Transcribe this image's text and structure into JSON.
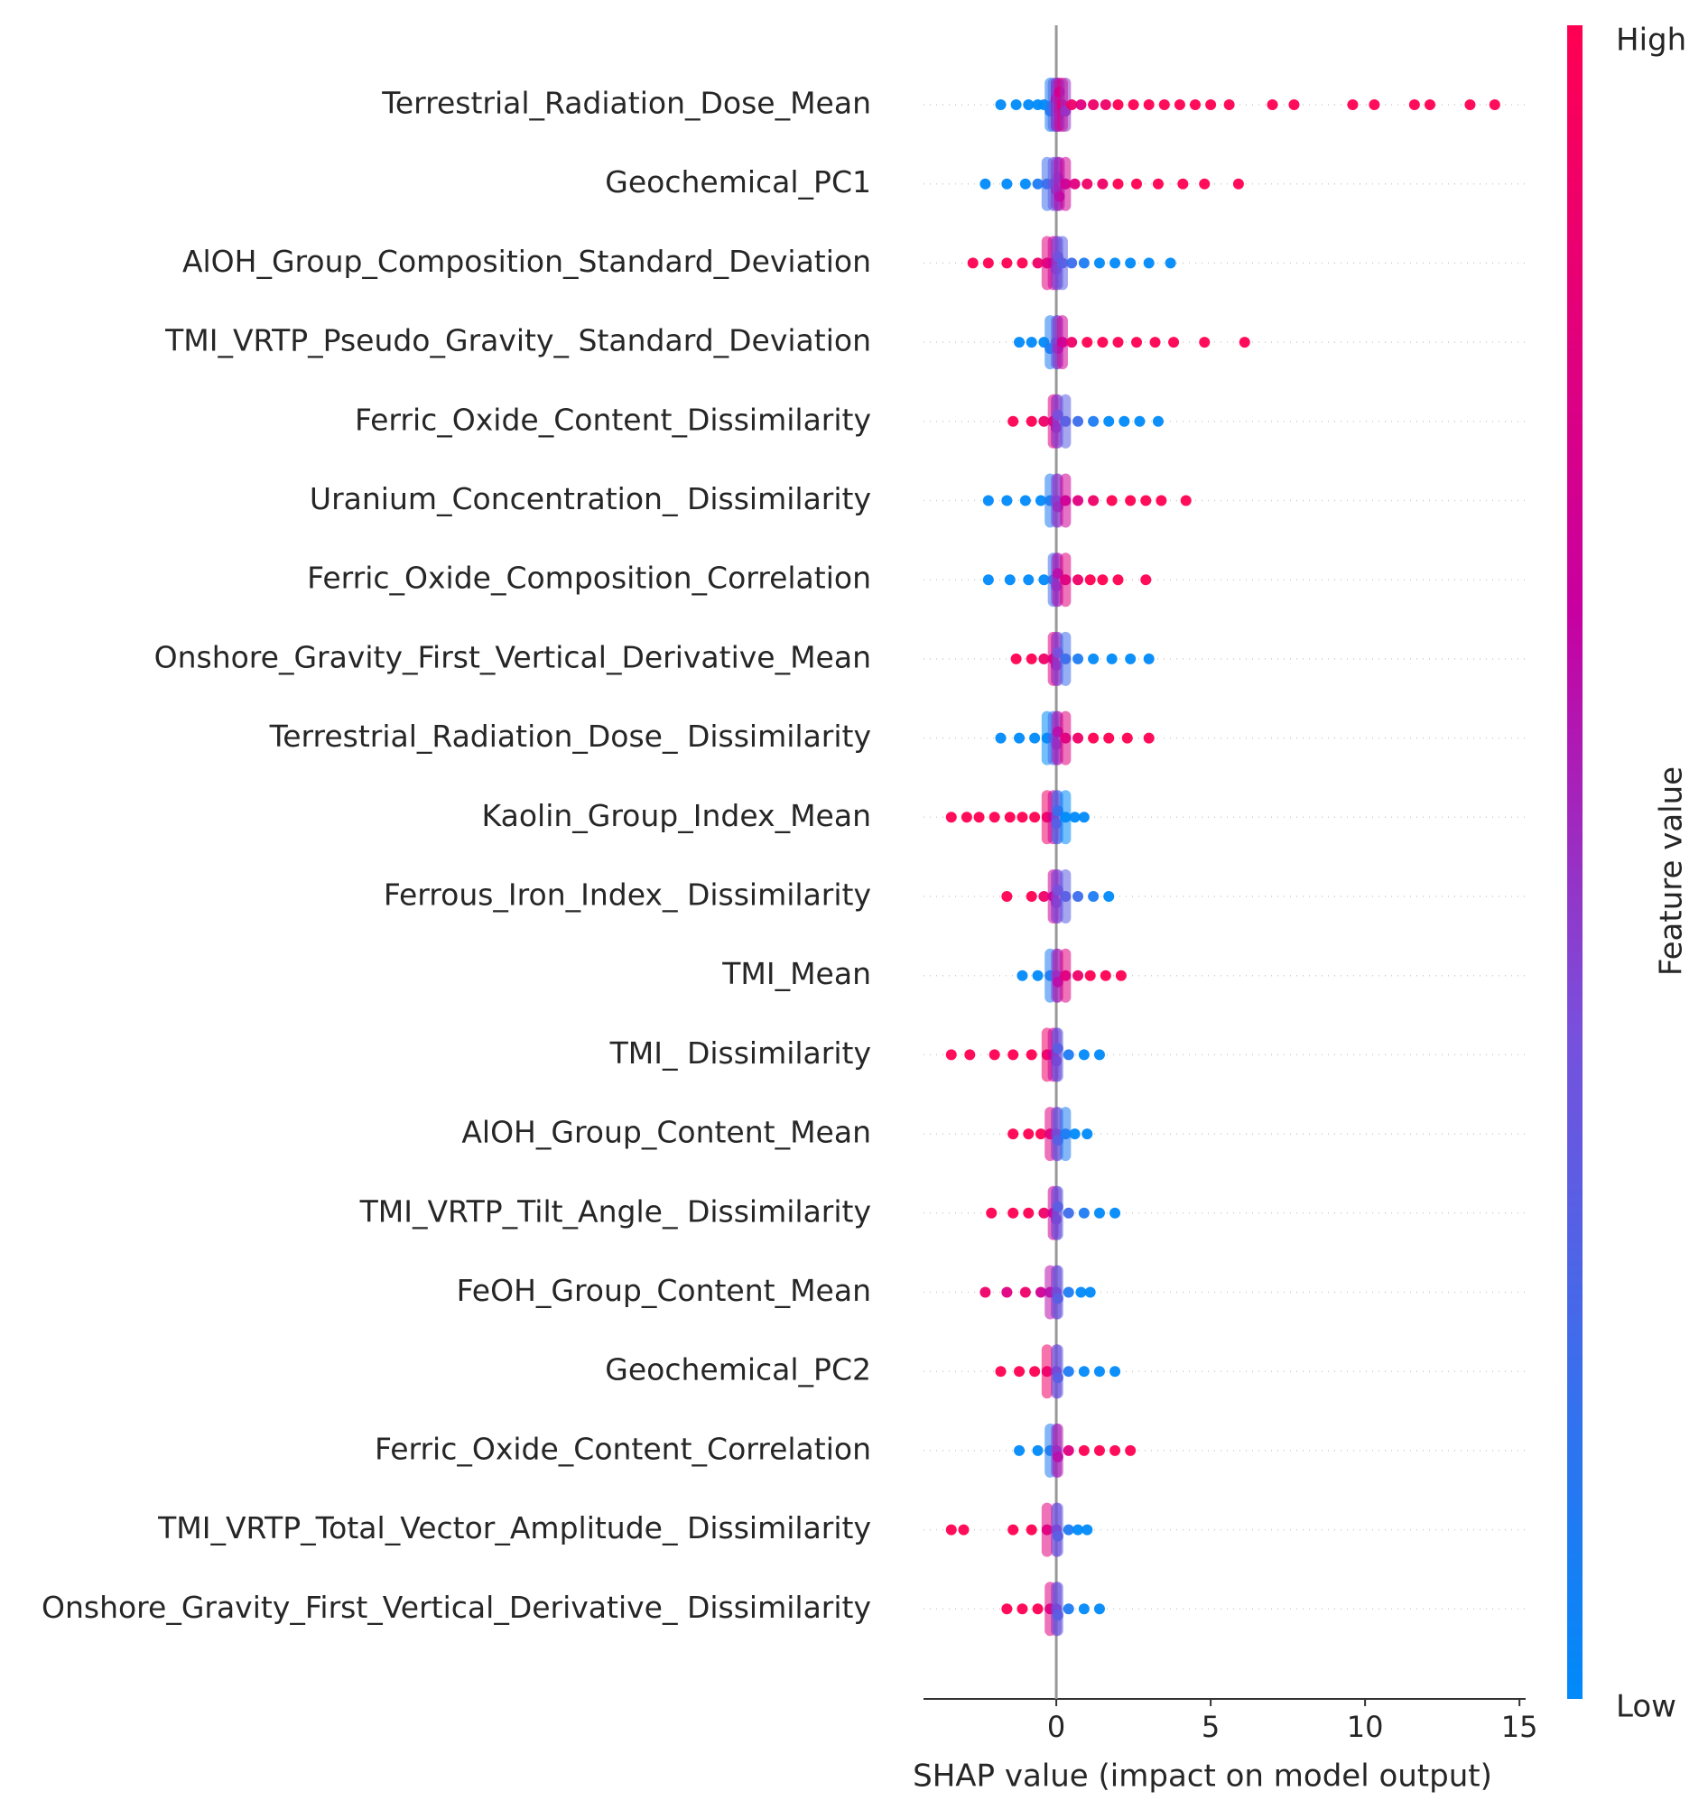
{
  "chart_data": {
    "type": "beeswarm",
    "xlabel": "SHAP value (impact on model output)",
    "xlim": [
      -4.3,
      15.2
    ],
    "xticks": [
      0,
      5,
      10,
      15
    ],
    "colorbar_label": "Feature value",
    "colorbar_high": "High",
    "colorbar_low": "Low",
    "features": [
      {
        "name": "Terrestrial_Radiation_Dose_Mean",
        "shap": [
          -1.8,
          -1.3,
          -0.9,
          -0.6,
          -0.4,
          -0.2,
          -0.1,
          0,
          0,
          0.05,
          0.1,
          0.2,
          0.3,
          0.5,
          0.8,
          1.2,
          1.6,
          2.0,
          2.5,
          3.0,
          3.5,
          4.0,
          4.5,
          5.0,
          5.6,
          7.0,
          7.7,
          9.6,
          10.3,
          11.6,
          12.1,
          13.4,
          14.2
        ],
        "feature_value": [
          0,
          0,
          0,
          0,
          0,
          0.1,
          0.2,
          0.3,
          0.6,
          0.4,
          0.7,
          0.8,
          0.5,
          0.9,
          0.8,
          0.9,
          0.9,
          1,
          1,
          1,
          1,
          1,
          1,
          1,
          1,
          1,
          1,
          1,
          1,
          1,
          1,
          1,
          1
        ]
      },
      {
        "name": "Geochemical_PC1",
        "shap": [
          -2.3,
          -1.6,
          -1.0,
          -0.6,
          -0.3,
          -0.1,
          0,
          0.05,
          0.1,
          0.3,
          0.6,
          1.0,
          1.5,
          2.0,
          2.6,
          3.3,
          4.1,
          4.8,
          5.9
        ],
        "feature_value": [
          0,
          0,
          0,
          0.1,
          0.2,
          0.3,
          0.5,
          0.4,
          0.6,
          0.7,
          0.8,
          0.9,
          0.9,
          1,
          1,
          1,
          1,
          1,
          1
        ]
      },
      {
        "name": "AlOH_Group_Composition_Standard_Deviation",
        "shap": [
          -2.7,
          -2.2,
          -1.6,
          -1.1,
          -0.6,
          -0.3,
          -0.1,
          0,
          0.05,
          0.2,
          0.5,
          0.9,
          1.4,
          1.9,
          2.4,
          3.0,
          3.7
        ],
        "feature_value": [
          1,
          1,
          1,
          1,
          0.9,
          0.8,
          0.7,
          0.5,
          0.4,
          0.3,
          0.2,
          0.1,
          0,
          0,
          0,
          0,
          0
        ]
      },
      {
        "name": "TMI_VRTP_Pseudo_Gravity_ Standard_Deviation",
        "shap": [
          -1.2,
          -0.8,
          -0.4,
          -0.2,
          0,
          0.05,
          0.2,
          0.5,
          1.0,
          1.5,
          2.0,
          2.6,
          3.2,
          3.8,
          4.8,
          6.1
        ],
        "feature_value": [
          0,
          0,
          0,
          0.1,
          0.3,
          0.5,
          0.7,
          0.9,
          1,
          1,
          1,
          1,
          1,
          1,
          1,
          1
        ]
      },
      {
        "name": "Ferric_Oxide_Content_Dissimilarity",
        "shap": [
          -1.4,
          -0.8,
          -0.4,
          -0.1,
          0,
          0.05,
          0.3,
          0.7,
          1.2,
          1.7,
          2.2,
          2.7,
          3.3
        ],
        "feature_value": [
          1,
          1,
          0.9,
          0.8,
          0.6,
          0.4,
          0.3,
          0.2,
          0.1,
          0,
          0,
          0,
          0
        ]
      },
      {
        "name": "Uranium_Concentration_ Dissimilarity",
        "shap": [
          -2.2,
          -1.6,
          -1.0,
          -0.5,
          -0.2,
          0,
          0.05,
          0.3,
          0.7,
          1.2,
          1.8,
          2.4,
          2.9,
          3.4,
          4.2
        ],
        "feature_value": [
          0,
          0,
          0,
          0,
          0.1,
          0.4,
          0.5,
          0.7,
          0.8,
          0.9,
          1,
          1,
          1,
          1,
          1
        ]
      },
      {
        "name": "Ferric_Oxide_Composition_Correlation",
        "shap": [
          -2.2,
          -1.5,
          -0.9,
          -0.4,
          -0.1,
          0,
          0.05,
          0.3,
          0.7,
          1.1,
          1.5,
          2.0,
          2.9
        ],
        "feature_value": [
          0,
          0,
          0,
          0,
          0.2,
          0.4,
          0.6,
          0.8,
          0.9,
          1,
          1,
          1,
          1
        ]
      },
      {
        "name": "Onshore_Gravity_First_Vertical_Derivative_Mean",
        "shap": [
          -1.3,
          -0.8,
          -0.4,
          -0.1,
          0,
          0.05,
          0.3,
          0.7,
          1.2,
          1.8,
          2.4,
          3.0
        ],
        "feature_value": [
          1,
          1,
          0.9,
          0.8,
          0.6,
          0.4,
          0.2,
          0.1,
          0,
          0,
          0,
          0
        ]
      },
      {
        "name": "Terrestrial_Radiation_Dose_ Dissimilarity",
        "shap": [
          -1.8,
          -1.2,
          -0.7,
          -0.3,
          -0.1,
          0,
          0.05,
          0.3,
          0.7,
          1.2,
          1.7,
          2.3,
          3.0
        ],
        "feature_value": [
          0,
          0,
          0,
          0,
          0.2,
          0.4,
          0.6,
          0.8,
          0.9,
          1,
          1,
          1,
          1
        ]
      },
      {
        "name": "Kaolin_Group_Index_Mean",
        "shap": [
          -3.4,
          -2.9,
          -2.5,
          -2.0,
          -1.5,
          -1.1,
          -0.7,
          -0.3,
          -0.1,
          0,
          0.05,
          0.3,
          0.6,
          0.9
        ],
        "feature_value": [
          1,
          1,
          1,
          1,
          1,
          1,
          1,
          0.9,
          0.7,
          0.4,
          0.2,
          0,
          0,
          0
        ]
      },
      {
        "name": "Ferrous_Iron_Index_ Dissimilarity",
        "shap": [
          -1.6,
          -0.8,
          -0.4,
          -0.1,
          0,
          0.05,
          0.3,
          0.7,
          1.2,
          1.7
        ],
        "feature_value": [
          1,
          1,
          0.9,
          0.7,
          0.5,
          0.4,
          0.3,
          0.2,
          0.1,
          0
        ]
      },
      {
        "name": "TMI_Mean",
        "shap": [
          -1.1,
          -0.6,
          -0.2,
          0,
          0.05,
          0.3,
          0.7,
          1.1,
          1.6,
          2.1
        ],
        "feature_value": [
          0,
          0,
          0.1,
          0.4,
          0.6,
          0.8,
          0.9,
          1,
          1,
          1
        ]
      },
      {
        "name": "TMI_ Dissimilarity",
        "shap": [
          -3.4,
          -2.8,
          -2.0,
          -1.4,
          -0.8,
          -0.3,
          -0.1,
          0,
          0.05,
          0.4,
          0.9,
          1.4
        ],
        "feature_value": [
          1,
          1,
          1,
          1,
          1,
          0.9,
          0.7,
          0.5,
          0.3,
          0.1,
          0,
          0
        ]
      },
      {
        "name": "AlOH_Group_Content_Mean",
        "shap": [
          -1.4,
          -0.9,
          -0.5,
          -0.2,
          0,
          0.05,
          0.3,
          0.6,
          1.0
        ],
        "feature_value": [
          1,
          1,
          1,
          0.8,
          0.5,
          0.3,
          0.1,
          0,
          0
        ]
      },
      {
        "name": "TMI_VRTP_Tilt_Angle_ Dissimilarity",
        "shap": [
          -2.1,
          -1.4,
          -0.9,
          -0.4,
          -0.1,
          0,
          0.05,
          0.4,
          0.9,
          1.4,
          1.9
        ],
        "feature_value": [
          1,
          1,
          1,
          0.9,
          0.7,
          0.5,
          0.3,
          0.2,
          0.1,
          0,
          0
        ]
      },
      {
        "name": "FeOH_Group_Content_Mean",
        "shap": [
          -2.3,
          -1.6,
          -1.0,
          -0.5,
          -0.2,
          0,
          0.05,
          0.4,
          0.8,
          1.1
        ],
        "feature_value": [
          0.9,
          0.8,
          0.9,
          0.7,
          0.6,
          0.5,
          0.3,
          0.1,
          0,
          0
        ]
      },
      {
        "name": "Geochemical_PC2",
        "shap": [
          -1.8,
          -1.2,
          -0.7,
          -0.3,
          0,
          0.05,
          0.4,
          0.9,
          1.4,
          1.9
        ],
        "feature_value": [
          1,
          1,
          1,
          0.9,
          0.5,
          0.3,
          0.1,
          0,
          0,
          0
        ]
      },
      {
        "name": "Ferric_Oxide_Content_Correlation",
        "shap": [
          -1.2,
          -0.6,
          -0.2,
          0,
          0.05,
          0.4,
          0.9,
          1.4,
          1.9,
          2.4
        ],
        "feature_value": [
          0,
          0,
          0.1,
          0.4,
          0.6,
          0.8,
          1,
          1,
          1,
          1
        ]
      },
      {
        "name": "TMI_VRTP_Total_Vector_Amplitude_ Dissimilarity",
        "shap": [
          -3.4,
          -3.0,
          -1.4,
          -0.8,
          -0.3,
          0,
          0.05,
          0.4,
          0.7,
          1.0
        ],
        "feature_value": [
          1,
          1,
          1,
          1,
          0.8,
          0.5,
          0.3,
          0.1,
          0,
          0
        ]
      },
      {
        "name": "Onshore_Gravity_First_Vertical_Derivative_ Dissimilarity",
        "shap": [
          -1.6,
          -1.1,
          -0.6,
          -0.2,
          0,
          0.05,
          0.4,
          0.9,
          1.4
        ],
        "feature_value": [
          1,
          1,
          1,
          0.8,
          0.5,
          0.3,
          0.1,
          0,
          0
        ]
      }
    ]
  }
}
